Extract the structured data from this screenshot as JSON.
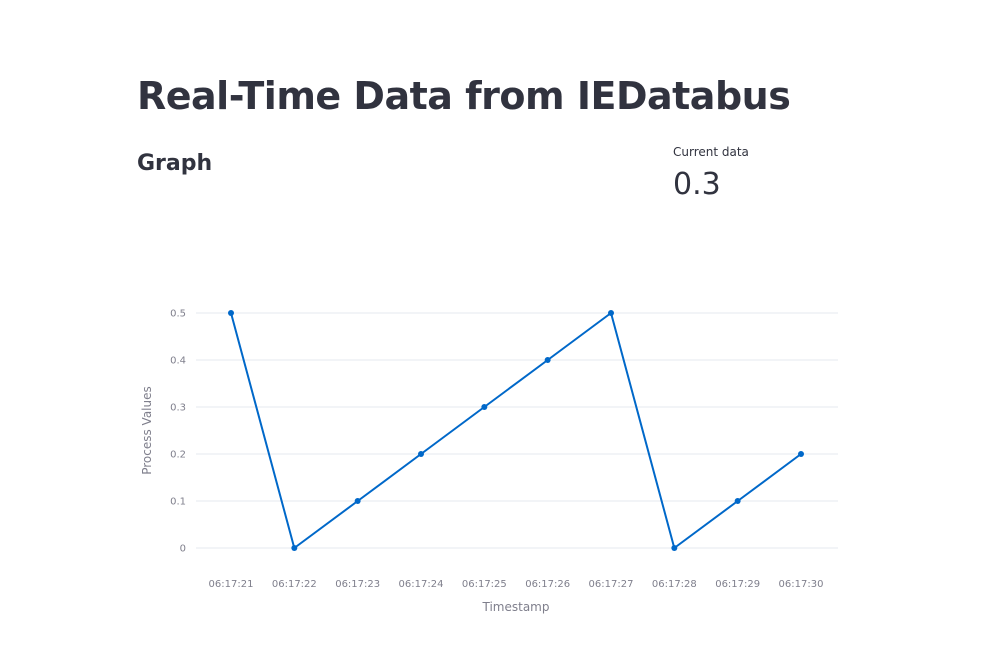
{
  "page": {
    "title": "Real-Time Data from IEDatabus",
    "section_title": "Graph"
  },
  "metric": {
    "label": "Current data",
    "value": "0.3"
  },
  "colors": {
    "line": "#0068c9",
    "grid": "#e6e9ef",
    "text": "#31333f",
    "muted": "#7f7f8c"
  },
  "chart_data": {
    "type": "line",
    "xlabel": "Timestamp",
    "ylabel": "Process Values",
    "x": [
      "06:17:21",
      "06:17:22",
      "06:17:23",
      "06:17:24",
      "06:17:25",
      "06:17:26",
      "06:17:27",
      "06:17:28",
      "06:17:29",
      "06:17:30"
    ],
    "series": [
      {
        "values": [
          0.5,
          0,
          0.1,
          0.2,
          0.3,
          0.4,
          0.5,
          0,
          0.1,
          0.2
        ]
      }
    ],
    "yticks": [
      "0",
      "0.1",
      "0.2",
      "0.3",
      "0.4",
      "0.5"
    ],
    "ylim": [
      0,
      0.5
    ],
    "grid": true,
    "markers": true
  }
}
